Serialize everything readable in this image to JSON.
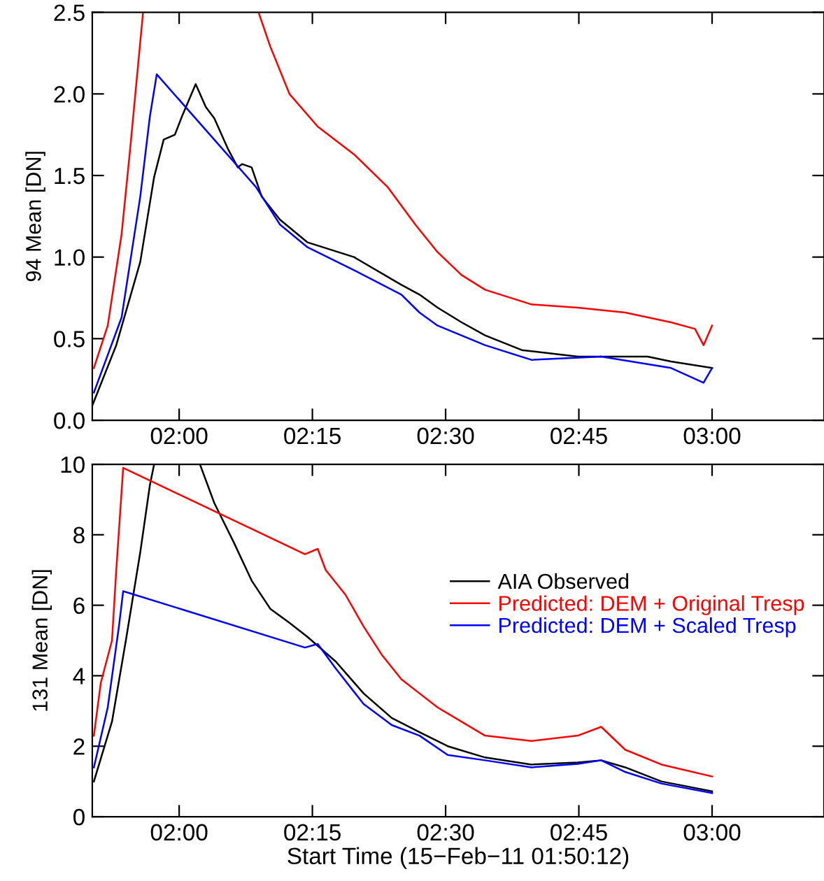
{
  "chart_data": [
    {
      "type": "line",
      "ylabel": "94 Mean [DN]",
      "xlim": [
        1.837,
        3.21
      ],
      "ylim": [
        0,
        2.5
      ],
      "yticks": [
        {
          "value": 0,
          "label": "0.0"
        },
        0.5,
        {
          "value": 1,
          "label": "1.0"
        },
        1.5,
        {
          "value": 2,
          "label": "2.0"
        },
        2.5
      ],
      "xticks": [
        {
          "value": 2,
          "label": "02:00"
        },
        {
          "value": 2.25,
          "label": "02:15"
        },
        {
          "value": 2.5,
          "label": "02:30"
        },
        {
          "value": 2.75,
          "label": "02:45"
        },
        {
          "value": 3,
          "label": "03:00"
        }
      ],
      "grid": false,
      "legend": false,
      "marker": "none",
      "line_style": "solid",
      "series": [
        {
          "color": "#000000",
          "x": [
            1.837,
            1.882,
            1.927,
            1.953,
            1.971,
            1.992,
            2.005,
            2.031,
            2.05,
            2.066,
            2.092,
            2.11,
            2.118,
            2.136,
            2.155,
            2.189,
            2.241,
            2.328,
            2.417,
            2.451,
            2.485,
            2.53,
            2.574,
            2.643,
            2.748,
            2.879,
            2.923,
            3.0
          ],
          "values": [
            0.09,
            0.46,
            0.97,
            1.49,
            1.72,
            1.75,
            1.86,
            2.06,
            1.92,
            1.85,
            1.66,
            1.55,
            1.57,
            1.55,
            1.37,
            1.23,
            1.09,
            1.0,
            0.83,
            0.77,
            0.69,
            0.6,
            0.52,
            0.43,
            0.39,
            0.39,
            0.36,
            0.32
          ]
        },
        {
          "color": "#ff0000",
          "x": [
            1.84,
            1.866,
            1.892,
            1.908,
            1.932,
            1.94,
            2.15,
            2.171,
            2.207,
            2.26,
            2.328,
            2.391,
            2.443,
            2.485,
            2.53,
            2.574,
            2.661,
            2.748,
            2.837,
            2.923,
            2.968,
            2.984,
            3.0
          ],
          "values": [
            0.32,
            0.58,
            1.14,
            1.66,
            2.49,
            null,
            2.49,
            2.29,
            2.0,
            1.8,
            1.63,
            1.43,
            1.2,
            1.03,
            0.89,
            0.8,
            0.71,
            0.69,
            0.66,
            0.6,
            0.56,
            0.46,
            0.58
          ]
        },
        {
          "color": "#0000ff",
          "x": [
            1.84,
            1.892,
            1.927,
            1.945,
            1.958,
            2.144,
            2.189,
            2.241,
            2.328,
            2.417,
            2.451,
            2.485,
            2.574,
            2.661,
            2.792,
            2.923,
            2.984,
            3.0
          ],
          "values": [
            0.17,
            0.63,
            1.37,
            1.86,
            2.12,
            1.43,
            1.2,
            1.06,
            0.92,
            0.77,
            0.66,
            0.58,
            0.46,
            0.37,
            0.39,
            0.32,
            0.23,
            0.32
          ]
        }
      ]
    },
    {
      "type": "line",
      "ylabel": "131 Mean [DN]",
      "xlabel": "Start Time (15−Feb−11 01:50:12)",
      "xlim": [
        1.837,
        3.21
      ],
      "ylim": [
        0,
        10
      ],
      "yticks": [
        0,
        2,
        4,
        6,
        8,
        10
      ],
      "xticks": [
        {
          "value": 2,
          "label": "02:00"
        },
        {
          "value": 2.25,
          "label": "02:15"
        },
        {
          "value": 2.5,
          "label": "02:30"
        },
        {
          "value": 2.75,
          "label": "02:45"
        },
        {
          "value": 3,
          "label": "03:00"
        }
      ],
      "grid": false,
      "legend": "right",
      "marker": "none",
      "line_style": "solid",
      "series": [
        {
          "name": "AIA Observed",
          "color": "#000000",
          "x": [
            1.84,
            1.874,
            1.9,
            1.927,
            1.945,
            1.953,
            1.99,
            2.039,
            2.066,
            2.102,
            2.136,
            2.171,
            2.207,
            2.241,
            2.294,
            2.346,
            2.399,
            2.451,
            2.504,
            2.574,
            2.661,
            2.748,
            2.792,
            2.837,
            2.905,
            3.0
          ],
          "values": [
            1.0,
            2.7,
            5.0,
            7.5,
            9.4,
            10,
            null,
            10,
            8.9,
            7.8,
            6.7,
            5.9,
            5.5,
            5.1,
            4.4,
            3.5,
            2.8,
            2.4,
            2.0,
            1.68,
            1.48,
            1.54,
            1.6,
            1.4,
            1.0,
            0.72
          ]
        },
        {
          "name": "Predicted: DEM + Original Tresp",
          "color": "#ff0000",
          "x": [
            1.84,
            1.853,
            1.874,
            1.882,
            1.895,
            2.236,
            2.26,
            2.275,
            2.312,
            2.346,
            2.38,
            2.417,
            2.451,
            2.485,
            2.574,
            2.661,
            2.748,
            2.792,
            2.837,
            2.905,
            3.0
          ],
          "values": [
            2.3,
            3.8,
            5.0,
            7.0,
            9.9,
            7.45,
            7.6,
            7.0,
            6.3,
            5.4,
            4.6,
            3.9,
            3.5,
            3.1,
            2.3,
            2.15,
            2.3,
            2.55,
            1.9,
            1.48,
            1.14
          ]
        },
        {
          "name": "Predicted: DEM + Scaled Tresp",
          "color": "#0000ff",
          "x": [
            1.84,
            1.866,
            1.887,
            1.895,
            2.236,
            2.26,
            2.294,
            2.346,
            2.399,
            2.451,
            2.504,
            2.574,
            2.661,
            2.748,
            2.792,
            2.837,
            2.905,
            3.0
          ],
          "values": [
            1.4,
            3.1,
            5.4,
            6.4,
            4.8,
            4.9,
            4.2,
            3.2,
            2.6,
            2.3,
            1.75,
            1.6,
            1.4,
            1.5,
            1.6,
            1.27,
            0.94,
            0.67
          ]
        }
      ]
    }
  ]
}
